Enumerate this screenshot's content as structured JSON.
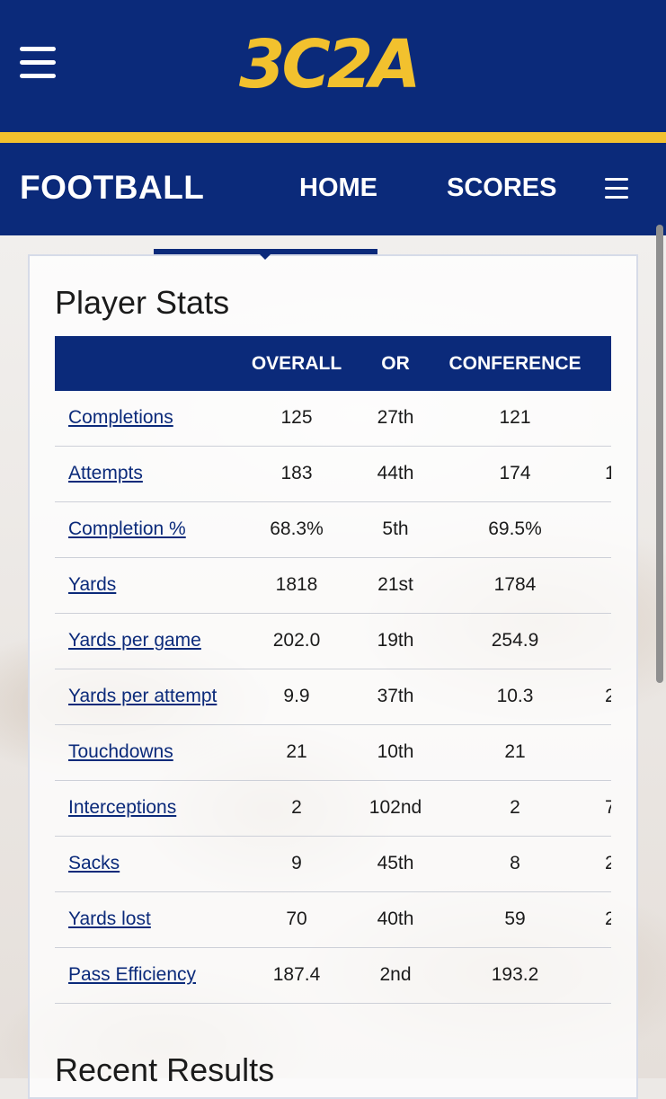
{
  "header": {
    "logo_text": "3C2A",
    "sport_title": "FOOTBALL",
    "nav": [
      "HOME",
      "SCORES"
    ],
    "brand_colors": {
      "navy": "#0b2a7a",
      "gold": "#f2c12e"
    }
  },
  "player_stats": {
    "title": "Player Stats",
    "columns": [
      "OVERALL",
      "OR",
      "CONFERENCE"
    ],
    "rows": [
      {
        "label": "Completions",
        "overall": "125",
        "or": "27th",
        "conference": "121",
        "extra": ""
      },
      {
        "label": "Attempts",
        "overall": "183",
        "or": "44th",
        "conference": "174",
        "extra": "1"
      },
      {
        "label": "Completion %",
        "overall": "68.3%",
        "or": "5th",
        "conference": "69.5%",
        "extra": ""
      },
      {
        "label": "Yards",
        "overall": "1818",
        "or": "21st",
        "conference": "1784",
        "extra": ""
      },
      {
        "label": "Yards per game",
        "overall": "202.0",
        "or": "19th",
        "conference": "254.9",
        "extra": ""
      },
      {
        "label": "Yards per attempt",
        "overall": "9.9",
        "or": "37th",
        "conference": "10.3",
        "extra": "2"
      },
      {
        "label": "Touchdowns",
        "overall": "21",
        "or": "10th",
        "conference": "21",
        "extra": ""
      },
      {
        "label": "Interceptions",
        "overall": "2",
        "or": "102nd",
        "conference": "2",
        "extra": "7"
      },
      {
        "label": "Sacks",
        "overall": "9",
        "or": "45th",
        "conference": "8",
        "extra": "2"
      },
      {
        "label": "Yards lost",
        "overall": "70",
        "or": "40th",
        "conference": "59",
        "extra": "2"
      },
      {
        "label": "Pass Efficiency",
        "overall": "187.4",
        "or": "2nd",
        "conference": "193.2",
        "extra": ""
      }
    ]
  },
  "recent_results": {
    "title": "Recent Results"
  }
}
